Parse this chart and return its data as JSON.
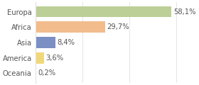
{
  "categories": [
    "Europa",
    "Africa",
    "Asia",
    "America",
    "Oceania"
  ],
  "values": [
    58.1,
    29.7,
    8.4,
    3.6,
    0.2
  ],
  "labels": [
    "58,1%",
    "29,7%",
    "8,4%",
    "3,6%",
    "0,2%"
  ],
  "bar_colors": [
    "#bccf96",
    "#f2bc8d",
    "#7b8fc4",
    "#f0d87a",
    "#c8c8c8"
  ],
  "background_color": "#ffffff",
  "grid_color": "#e0e0e0",
  "text_color": "#555555",
  "xlim": [
    0,
    68
  ],
  "label_fontsize": 7.2,
  "bar_height": 0.72,
  "figsize": [
    2.8,
    1.2
  ],
  "dpi": 100
}
